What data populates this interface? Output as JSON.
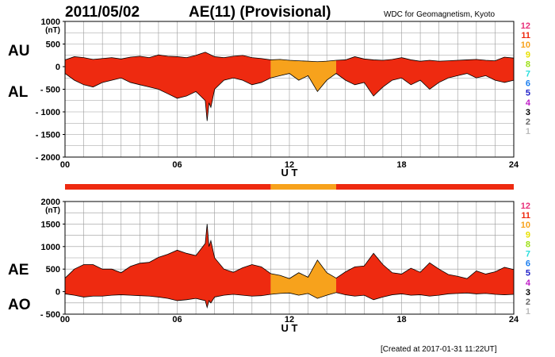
{
  "header": {
    "date": "2011/05/02",
    "title": "AE(11) (Provisional)",
    "source": "WDC for Geomagnetism, Kyoto"
  },
  "footer": {
    "created": "[Created at 2017-01-31 11:22UT]"
  },
  "colors": {
    "band_red": "#ee2a10",
    "band_orange": "#f7a21c"
  },
  "legend": {
    "items": [
      {
        "label": "12",
        "color": "#e8307a"
      },
      {
        "label": "11",
        "color": "#ee2a10"
      },
      {
        "label": "10",
        "color": "#f7a21c"
      },
      {
        "label": "9",
        "color": "#e8e000"
      },
      {
        "label": "8",
        "color": "#9ee018"
      },
      {
        "label": "7",
        "color": "#28dede"
      },
      {
        "label": "6",
        "color": "#1a7ef0"
      },
      {
        "label": "5",
        "color": "#2020c8"
      },
      {
        "label": "4",
        "color": "#c020c8"
      },
      {
        "label": "3",
        "color": "#000000"
      },
      {
        "label": "2",
        "color": "#666666"
      },
      {
        "label": "1",
        "color": "#bbbbbb"
      }
    ]
  },
  "station_bar": {
    "segments": [
      {
        "start": 0,
        "end": 11,
        "level": "11"
      },
      {
        "start": 11,
        "end": 14.5,
        "level": "10"
      },
      {
        "start": 14.5,
        "end": 24,
        "level": "11"
      }
    ]
  },
  "chart_data": [
    {
      "type": "area",
      "name": "upper",
      "label_top": "AU",
      "label_bottom": "AL",
      "unit": "(nT)",
      "xlabel": "U T",
      "xlim": [
        0,
        24
      ],
      "ylim": [
        -2000,
        1000
      ],
      "yticks": [
        1000,
        500,
        0,
        -500,
        -1000,
        -1500,
        -2000
      ],
      "ytick_labels": [
        "1000",
        "500",
        "0",
        "- 500",
        "- 1000",
        "- 1500",
        "- 2000"
      ],
      "xticks": [
        0,
        6,
        12,
        18,
        24
      ],
      "xtick_labels": [
        "00",
        "06",
        "12",
        "18",
        "24"
      ],
      "grid": true,
      "segments": [
        {
          "start": 0,
          "end": 11,
          "color": "#ee2a10"
        },
        {
          "start": 11,
          "end": 14.5,
          "color": "#f7a21c"
        },
        {
          "start": 14.5,
          "end": 24,
          "color": "#ee2a10"
        }
      ],
      "series": [
        {
          "name": "AU",
          "x": [
            0,
            0.5,
            1,
            1.5,
            2,
            2.5,
            3,
            3.5,
            4,
            4.5,
            5,
            5.5,
            6,
            6.5,
            7,
            7.5,
            8,
            8.5,
            9,
            9.5,
            10,
            10.5,
            11,
            11.5,
            12,
            12.5,
            13,
            13.5,
            14,
            14.5,
            15,
            15.5,
            16,
            16.5,
            17,
            17.5,
            18,
            18.5,
            19,
            19.5,
            20,
            20.5,
            21,
            21.5,
            22,
            22.5,
            23,
            23.5,
            24
          ],
          "values": [
            150,
            220,
            200,
            160,
            180,
            200,
            170,
            210,
            230,
            200,
            260,
            230,
            220,
            200,
            250,
            320,
            220,
            200,
            230,
            250,
            200,
            180,
            150,
            160,
            140,
            130,
            120,
            110,
            120,
            140,
            150,
            220,
            170,
            150,
            140,
            160,
            200,
            150,
            120,
            140,
            120,
            130,
            140,
            150,
            160,
            140,
            130,
            210,
            190
          ]
        },
        {
          "name": "AL",
          "x": [
            0,
            0.5,
            1,
            1.5,
            2,
            2.5,
            3,
            3.5,
            4,
            4.5,
            5,
            5.5,
            6,
            6.5,
            7,
            7.5,
            7.6,
            7.7,
            7.8,
            8,
            8.5,
            9,
            9.5,
            10,
            10.5,
            11,
            11.5,
            12,
            12.5,
            13,
            13.5,
            14,
            14.5,
            15,
            15.5,
            16,
            16.5,
            17,
            17.5,
            18,
            18.5,
            19,
            19.5,
            20,
            20.5,
            21,
            21.5,
            22,
            22.5,
            23,
            23.5,
            24
          ],
          "values": [
            -150,
            -300,
            -400,
            -450,
            -350,
            -300,
            -250,
            -350,
            -400,
            -450,
            -500,
            -600,
            -700,
            -650,
            -550,
            -750,
            -1200,
            -800,
            -900,
            -500,
            -300,
            -250,
            -300,
            -400,
            -350,
            -250,
            -200,
            -150,
            -300,
            -200,
            -550,
            -300,
            -150,
            -300,
            -400,
            -350,
            -650,
            -450,
            -300,
            -250,
            -400,
            -300,
            -500,
            -350,
            -250,
            -200,
            -150,
            -250,
            -200,
            -300,
            -350,
            -300
          ]
        }
      ]
    },
    {
      "type": "area",
      "name": "lower",
      "label_top": "AE",
      "label_bottom": "AO",
      "unit": "(nT)",
      "xlabel": "U T",
      "xlim": [
        0,
        24
      ],
      "ylim": [
        -500,
        2000
      ],
      "yticks": [
        2000,
        1500,
        1000,
        500,
        0,
        -500
      ],
      "ytick_labels": [
        "2000",
        "1500",
        "1000",
        "500",
        "0",
        "- 500"
      ],
      "xticks": [
        0,
        6,
        12,
        18,
        24
      ],
      "xtick_labels": [
        "00",
        "06",
        "12",
        "18",
        "24"
      ],
      "grid": true,
      "segments": [
        {
          "start": 0,
          "end": 11,
          "color": "#ee2a10"
        },
        {
          "start": 11,
          "end": 14.5,
          "color": "#f7a21c"
        },
        {
          "start": 14.5,
          "end": 24,
          "color": "#ee2a10"
        }
      ],
      "series": [
        {
          "name": "AE",
          "x": [
            0,
            0.5,
            1,
            1.5,
            2,
            2.5,
            3,
            3.5,
            4,
            4.5,
            5,
            5.5,
            6,
            6.5,
            7,
            7.5,
            7.6,
            7.7,
            7.8,
            8,
            8.5,
            9,
            9.5,
            10,
            10.5,
            11,
            11.5,
            12,
            12.5,
            13,
            13.5,
            14,
            14.5,
            15,
            15.5,
            16,
            16.5,
            17,
            17.5,
            18,
            18.5,
            19,
            19.5,
            20,
            20.5,
            21,
            21.5,
            22,
            22.5,
            23,
            23.5,
            24
          ],
          "values": [
            300,
            500,
            600,
            600,
            500,
            500,
            420,
            560,
            630,
            650,
            760,
            830,
            920,
            850,
            800,
            1070,
            1500,
            1000,
            1130,
            750,
            500,
            430,
            530,
            600,
            550,
            400,
            360,
            290,
            420,
            320,
            700,
            420,
            300,
            440,
            550,
            570,
            850,
            600,
            420,
            390,
            520,
            430,
            640,
            500,
            380,
            340,
            290,
            460,
            390,
            440,
            540,
            490
          ]
        },
        {
          "name": "AO",
          "x": [
            0,
            0.5,
            1,
            1.5,
            2,
            2.5,
            3,
            3.5,
            4,
            4.5,
            5,
            5.5,
            6,
            6.5,
            7,
            7.5,
            7.6,
            7.7,
            7.8,
            8,
            8.5,
            9,
            9.5,
            10,
            10.5,
            11,
            11.5,
            12,
            12.5,
            13,
            13.5,
            14,
            14.5,
            15,
            15.5,
            16,
            16.5,
            17,
            17.5,
            18,
            18.5,
            19,
            19.5,
            20,
            20.5,
            21,
            21.5,
            22,
            22.5,
            23,
            23.5,
            24
          ],
          "values": [
            -50,
            -80,
            -120,
            -100,
            -100,
            -80,
            -70,
            -80,
            -90,
            -100,
            -120,
            -150,
            -200,
            -180,
            -150,
            -200,
            -350,
            -200,
            -250,
            -120,
            -80,
            -60,
            -80,
            -100,
            -90,
            -60,
            -40,
            -30,
            -80,
            -40,
            -150,
            -80,
            -20,
            -70,
            -100,
            -80,
            -180,
            -120,
            -70,
            -50,
            -80,
            -70,
            -100,
            -80,
            -50,
            -40,
            -30,
            -50,
            -40,
            -60,
            -70,
            -60
          ]
        }
      ]
    }
  ]
}
